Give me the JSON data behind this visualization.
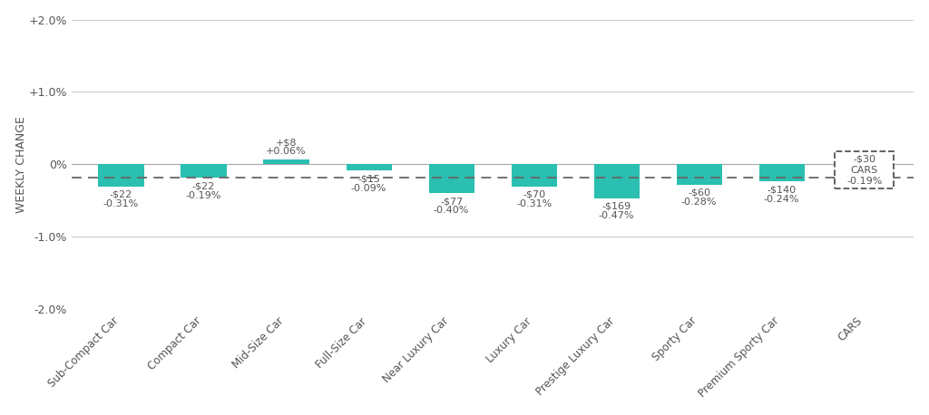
{
  "categories": [
    "Sub-Compact Car",
    "Compact Car",
    "Mid-Size Car",
    "Full-Size Car",
    "Near Luxury Car",
    "Luxury Car",
    "Prestige Luxury Car",
    "Sporty Car",
    "Premium Sporty Car",
    "CARS"
  ],
  "pct_values": [
    -0.31,
    -0.19,
    0.06,
    -0.09,
    -0.4,
    -0.31,
    -0.47,
    -0.28,
    -0.24,
    -0.19
  ],
  "dollar_labels": [
    "-$22",
    "-$22",
    "+$8",
    "-$15",
    "-$77",
    "-$70",
    "-$169",
    "-$60",
    "-$140",
    "-$30"
  ],
  "pct_labels": [
    "-0.31%",
    "-0.19%",
    "+0.06%",
    "-0.09%",
    "-0.40%",
    "-0.31%",
    "-0.47%",
    "-0.28%",
    "-0.24%",
    "-0.19%"
  ],
  "bar_color": "#2abfb0",
  "dashed_line_y": -0.19,
  "ylabel": "WEEKLY CHANGE",
  "ylim": [
    -2.0,
    2.0
  ],
  "yticks": [
    -2.0,
    -1.0,
    0.0,
    1.0,
    2.0
  ],
  "ytick_labels": [
    "-2.0%",
    "-1.0%",
    "0%",
    "+1.0%",
    "+2.0%"
  ],
  "background_color": "#ffffff",
  "grid_color": "#cccccc",
  "text_color": "#555555"
}
